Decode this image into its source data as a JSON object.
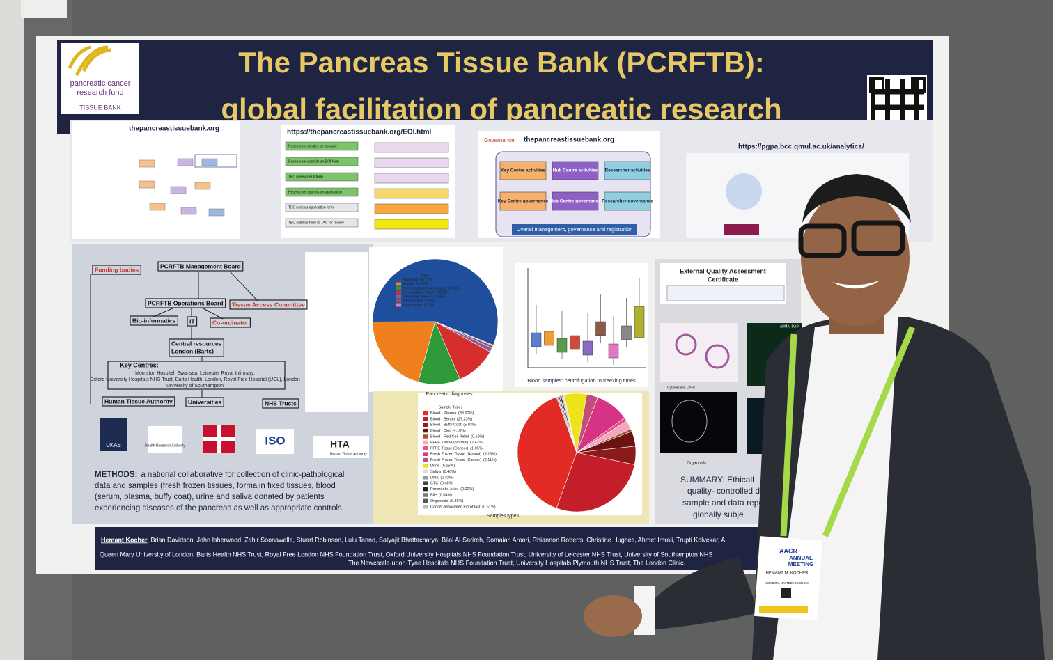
{
  "poster": {
    "title": [
      "The Pancreas Tissue Bank (PCRFTB):",
      "global facilitation of pancreatic research"
    ],
    "logo": [
      "pancreatic cancer",
      "research fund",
      "TISSUE BANK"
    ],
    "urls": [
      "thepancreastissuebank.org",
      "https://thepancreastissuebank.org/EOI.html",
      "thepancreastissuebank.org",
      "https://pgpa.bcc.qmul.ac.uk/analytics/"
    ],
    "eoi_steps": [
      "Researcher creates an account",
      "Researcher submits an EOI form",
      "TBC reviews EOI form",
      "Researcher submits an application",
      "TBC reviews application form",
      "TBC submits form to TAC for review"
    ],
    "governance": {
      "label": "Governance",
      "boxes": [
        "Key Centre activities",
        "Hub Centre activities",
        "Researcher activities",
        "Key Centre governance",
        "Hub Centre governance",
        "Researcher governance"
      ],
      "footer": "Overall management, governance and registration"
    },
    "org_chart": {
      "boxes": [
        "Funding bodies",
        "PCRFTB Management Board",
        "PCRFTB Operations Board",
        "Tissue Access Committee",
        "Bio-informatics",
        "IT",
        "Co-ordinator",
        "Central resources",
        "London (Barts)",
        "Human Tissue Authority",
        "Universities",
        "NHS Trusts"
      ],
      "key_centres_title": "Key Centres:",
      "key_centres": [
        "Morriston Hospital, Swansea, Leicester Royal Infirmary,",
        "Oxford University Hospitals NHS Trust, Barts Health, London, Royal Free Hospital (UCL), London",
        "University of Southampton"
      ]
    },
    "partner_logos": [
      "UKAS",
      "ISO",
      "HTA",
      "Human Tissue Authority",
      "Health Research Authority"
    ],
    "methods": {
      "lead": "METHODS:",
      "lines": [
        "a national collaborative for collection of clinic-pathological",
        "data and samples (fresh frozen tissues, formalin fixed tissues, blood",
        "(serum, plasma, buffy coat), urine and saliva donated by patients",
        "experiencing diseases of the pancreas as well as appropriate controls."
      ]
    },
    "diagnoses": {
      "type": "pie",
      "title": "Pancreatic diagnoses",
      "legend_title": "Type",
      "categories": [
        "Malignant",
        "Benign",
        "Neuroendocrine neoplasms",
        "Premalignant lesions",
        "Secondary tumours",
        "Not specified",
        "Lymphomas"
      ],
      "values": [
        56.22,
        20.56,
        10.86,
        10.53,
        1.09,
        0.6,
        0.22
      ],
      "value_labels": [
        "56.22%",
        "20.56%",
        "10.86%",
        "10.53%",
        "1.09%",
        "0.60%",
        "0.22%"
      ],
      "colors": [
        "#1f4e9c",
        "#f07f1e",
        "#2e9a3a",
        "#d62d2d",
        "#8a5aa8",
        "#8c564b",
        "#e377c2"
      ]
    },
    "blood_plot_title": "Blood samples: centrifugation to freezing times",
    "samples": {
      "type": "pie",
      "title": "Samples types",
      "legend_title": "Sample Types",
      "categories": [
        "Blood - Plasma",
        "Blood - Serum",
        "Blood - Buffy Coat",
        "Blood - Clot",
        "Blood - Red Cell Pellet",
        "FFPE Tissue (Normal)",
        "FFPE Tissue (Cancer)",
        "Fresh Frozen Tissue (Normal)",
        "Fresh Frozen Tissue (Cancer)",
        "Urine",
        "Saliva",
        "DNA",
        "CTC",
        "Pancreatic Juice",
        "Bile",
        "Organoids",
        "Cancer-associated Fibroblast"
      ],
      "values": [
        38.92,
        27.23,
        5.03,
        4.1,
        0.69,
        2.42,
        1.05,
        9.16,
        3.11,
        6.15,
        0.4,
        0.32,
        0.48,
        0.02,
        0.04,
        0.36,
        0.51
      ],
      "value_labels": [
        "(38.92%)",
        "(27.23%)",
        "(5.03%)",
        "(4.10%)",
        "(0.69%)",
        "(2.42%)",
        "(1.05%)",
        "(9.16%)",
        "(3.11%)",
        "(6.15%)",
        "(0.40%)",
        "(0.32%)",
        "(0.48%)",
        "(0.02%)",
        "(0.04%)",
        "(0.36%)",
        "(0.51%)"
      ],
      "colors": [
        "#e12b24",
        "#c41e2a",
        "#8b1a1a",
        "#6b1212",
        "#a0522d",
        "#f4a6c0",
        "#e75480",
        "#d63384",
        "#c0507a",
        "#eee21a",
        "#dddddd",
        "#999999",
        "#444444",
        "#222222",
        "#777777",
        "#555555",
        "#bbbbbb"
      ]
    },
    "eqa_title": [
      "External Quality Assessment",
      "Certificate"
    ],
    "image_captions": [
      "Cytokeratin, DAPI",
      "αSMA, DAPI",
      "Organoids"
    ],
    "summary": [
      "SUMMARY: Ethicall",
      "quality- controlled d",
      "sample and data repo",
      "globally subje"
    ],
    "authors": {
      "lead": "Hemant Kocher",
      "rest": ", Brian Davidson, John Isherwood, Zahir Soonawalla, Stuart Robinson, Lulu Tanno, Satyajit Bhattacharya, Bilal Al-Sarireh, Somaiah Aroori, Rhiannon Roberts, Christine Hughes, Ahmet Imrali, Trupti Kolvekar, A"
    },
    "affiliations": [
      "Queen Mary University of London, Barts Health NHS Trust, Royal Free London NHS Foundation Trust, Oxford University Hospitals NHS Foundation Trust, University of Leicester NHS Trust, University of Southampton NHS",
      "The Newcastle-upon-Tyne Hospitals NHS Foundation Trust, University Hospitals Plymouth NHS Trust, The London Clinic."
    ]
  },
  "badge": {
    "event": [
      "AACR",
      "ANNUAL",
      "MEETING"
    ],
    "name": "HEMANT M. KOCHER",
    "location": "LONDON, UNITED KINGDOM"
  }
}
